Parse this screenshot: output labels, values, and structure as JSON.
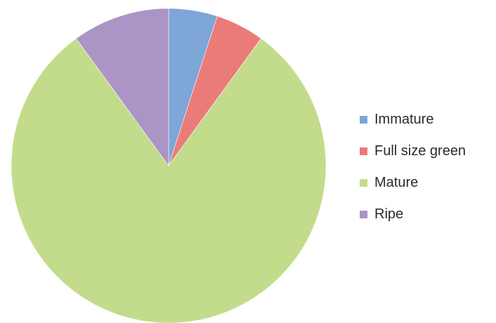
{
  "chart_data": {
    "type": "pie",
    "title": "",
    "categories": [
      "Immature",
      "Full size green",
      "Mature",
      "Ripe"
    ],
    "values": [
      5,
      5,
      80,
      10
    ],
    "colors": [
      "#7ea6d6",
      "#eb7b79",
      "#c3dc8b",
      "#ab94c6"
    ],
    "start_angle_deg": 0,
    "direction": "clockwise",
    "legend": {
      "position": "right",
      "items": [
        {
          "label": "Immature",
          "color": "#7ea6d6"
        },
        {
          "label": "Full size green",
          "color": "#eb7b79"
        },
        {
          "label": "Mature",
          "color": "#c3dc8b"
        },
        {
          "label": "Ripe",
          "color": "#ab94c6"
        }
      ]
    }
  }
}
